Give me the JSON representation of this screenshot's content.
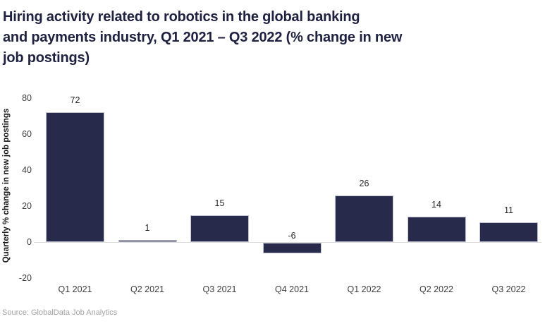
{
  "page": {
    "title": "Hiring activity related to robotics in the global banking\nand payments industry, Q1 2021 – Q3 2022 (% change in new\njob postings)"
  },
  "chart_data": {
    "type": "bar",
    "title": "Hiring activity related to robotics in the global banking and payments industry, Q1 2021 – Q3 2022 (% change in new job postings)",
    "categories": [
      "Q1 2021",
      "Q2 2021",
      "Q3 2021",
      "Q4 2021",
      "Q1 2022",
      "Q2 2022",
      "Q3 2022"
    ],
    "values": [
      72,
      1,
      15,
      -6,
      26,
      14,
      11
    ],
    "xlabel": "",
    "ylabel": "Quarterly % change in new job postings",
    "ylim": [
      -20,
      80
    ],
    "yticks": [
      -20,
      0,
      20,
      40,
      60,
      80
    ],
    "grid": false,
    "legend": "none",
    "bar_color": "#272a4a",
    "bar_border_color": "#bfc3d0",
    "title_color": "#1f2140",
    "source": "Source: GlobalData Job Analytics"
  }
}
